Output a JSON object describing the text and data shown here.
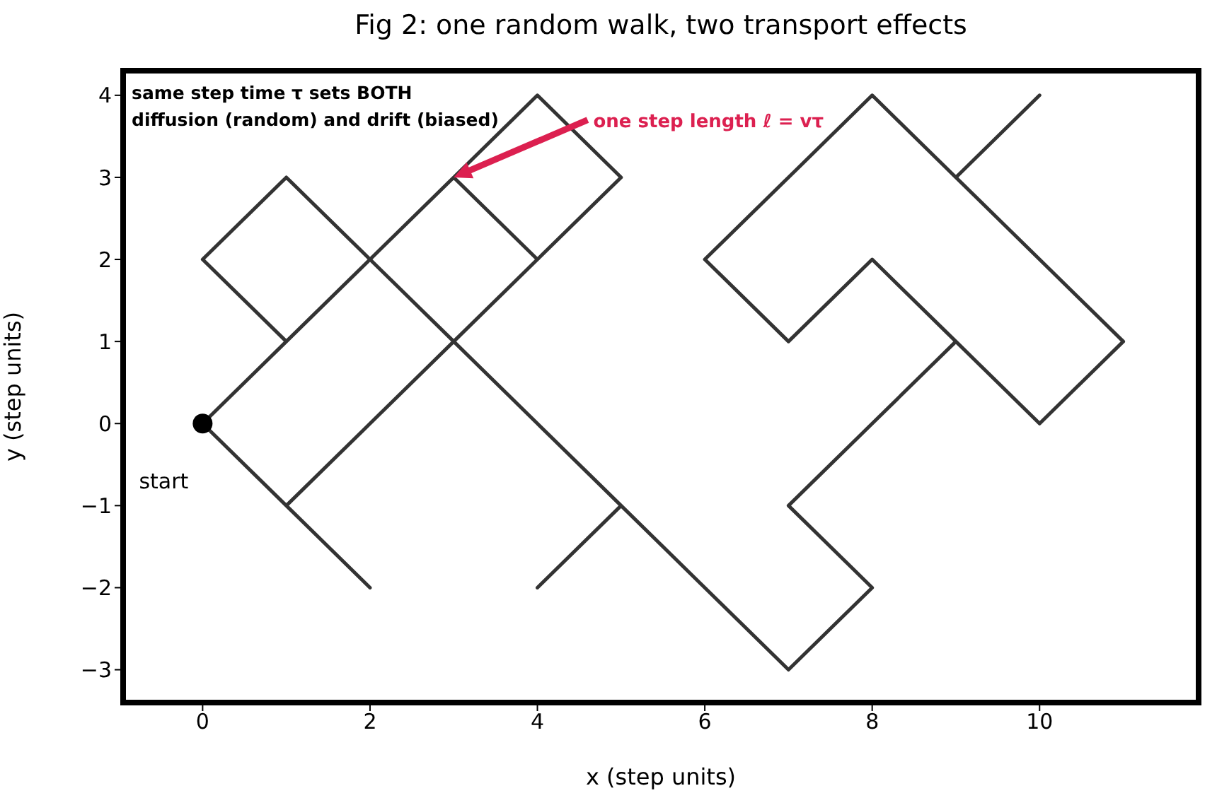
{
  "chart_data": {
    "type": "line",
    "title": "Fig 2: one random walk, two transport effects",
    "xlabel": "x  (step units)",
    "ylabel": "y  (step units)",
    "x": [
      0,
      1,
      2,
      1,
      2,
      3,
      4,
      3,
      4,
      5,
      4,
      3,
      2,
      1,
      0,
      1,
      0,
      1,
      2,
      3,
      2,
      1,
      2,
      3,
      4,
      5,
      4,
      5,
      6,
      7,
      8,
      7,
      8,
      9,
      8,
      7,
      6,
      7,
      8,
      9,
      10,
      11,
      10,
      9,
      10,
      11,
      10,
      9,
      10
    ],
    "series": [
      {
        "color": "#333333",
        "values": [
          0,
          -1,
          -2,
          -1,
          0,
          1,
          2,
          3,
          4,
          3,
          2,
          3,
          2,
          3,
          2,
          1,
          0,
          -1,
          0,
          1,
          2,
          1,
          2,
          1,
          0,
          -1,
          -2,
          -1,
          -2,
          -3,
          -2,
          -1,
          0,
          1,
          2,
          1,
          2,
          3,
          4,
          3,
          2,
          1,
          0,
          1,
          0,
          1,
          2,
          3,
          4
        ]
      },
      {
        "type": "scatter",
        "marker": "circle",
        "color": "#000000",
        "x": [
          0
        ],
        "values": [
          0
        ]
      }
    ],
    "xlim": [
      -0.95,
      11.9
    ],
    "ylim": [
      -3.4,
      4.3
    ],
    "xticks": [
      0,
      2,
      4,
      6,
      8,
      10
    ],
    "yticks": [
      -3,
      -2,
      -1,
      0,
      1,
      2,
      3,
      4
    ],
    "grid": false,
    "line_style": "solid",
    "annotations": [
      "same step time τ sets BOTH\ndiffusion (random) and drift (biased)",
      {
        "text": "start",
        "x": 0,
        "y": 0
      },
      {
        "text": "one step length ℓ = vτ",
        "x": 3,
        "y": 3
      }
    ]
  }
}
